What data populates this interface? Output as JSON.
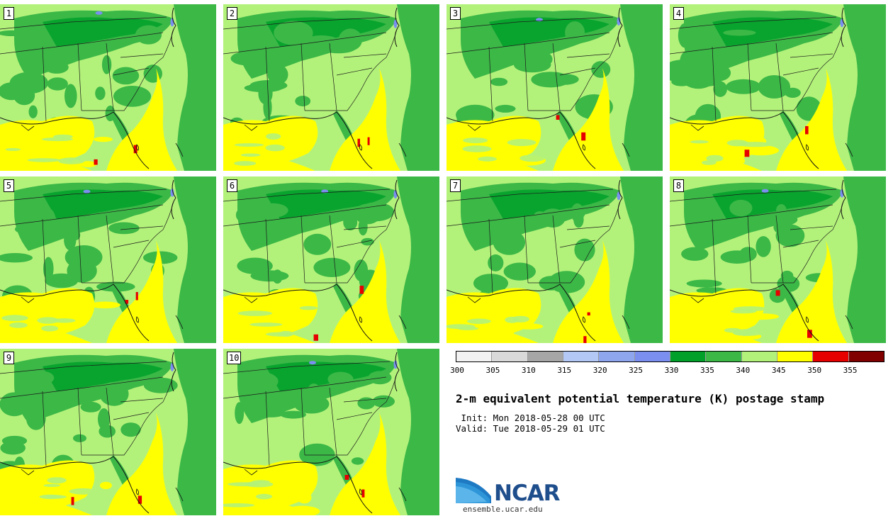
{
  "title": "2-m equivalent potential temperature (K) postage stamp",
  "init": " Init: Mon 2018-05-28 00 UTC",
  "valid": "Valid: Tue 2018-05-29 01 UTC",
  "logo": {
    "name": "NCAR",
    "url": "ensemble.ucar.edu"
  },
  "colorbar": {
    "ticks": [
      "300",
      "305",
      "310",
      "315",
      "320",
      "325",
      "330",
      "335",
      "340",
      "345",
      "350",
      "355"
    ],
    "colors": [
      "#f2f2f2",
      "#d9d9d9",
      "#a6a6a6",
      "#b3c8f5",
      "#8ea6ee",
      "#7a8ff0",
      "#00a02a",
      "#3cb847",
      "#b3f27a",
      "#ffff00",
      "#e60000",
      "#800000"
    ]
  },
  "members": [
    "1",
    "2",
    "3",
    "4",
    "5",
    "6",
    "7",
    "8",
    "9",
    "10"
  ],
  "colors": {
    "land_base": "#b3f27a",
    "moist": "#3cb847",
    "very_moist": "#00a02a",
    "warm": "#ffff00",
    "hot": "#e60000",
    "cool": "#7a8ff0"
  }
}
